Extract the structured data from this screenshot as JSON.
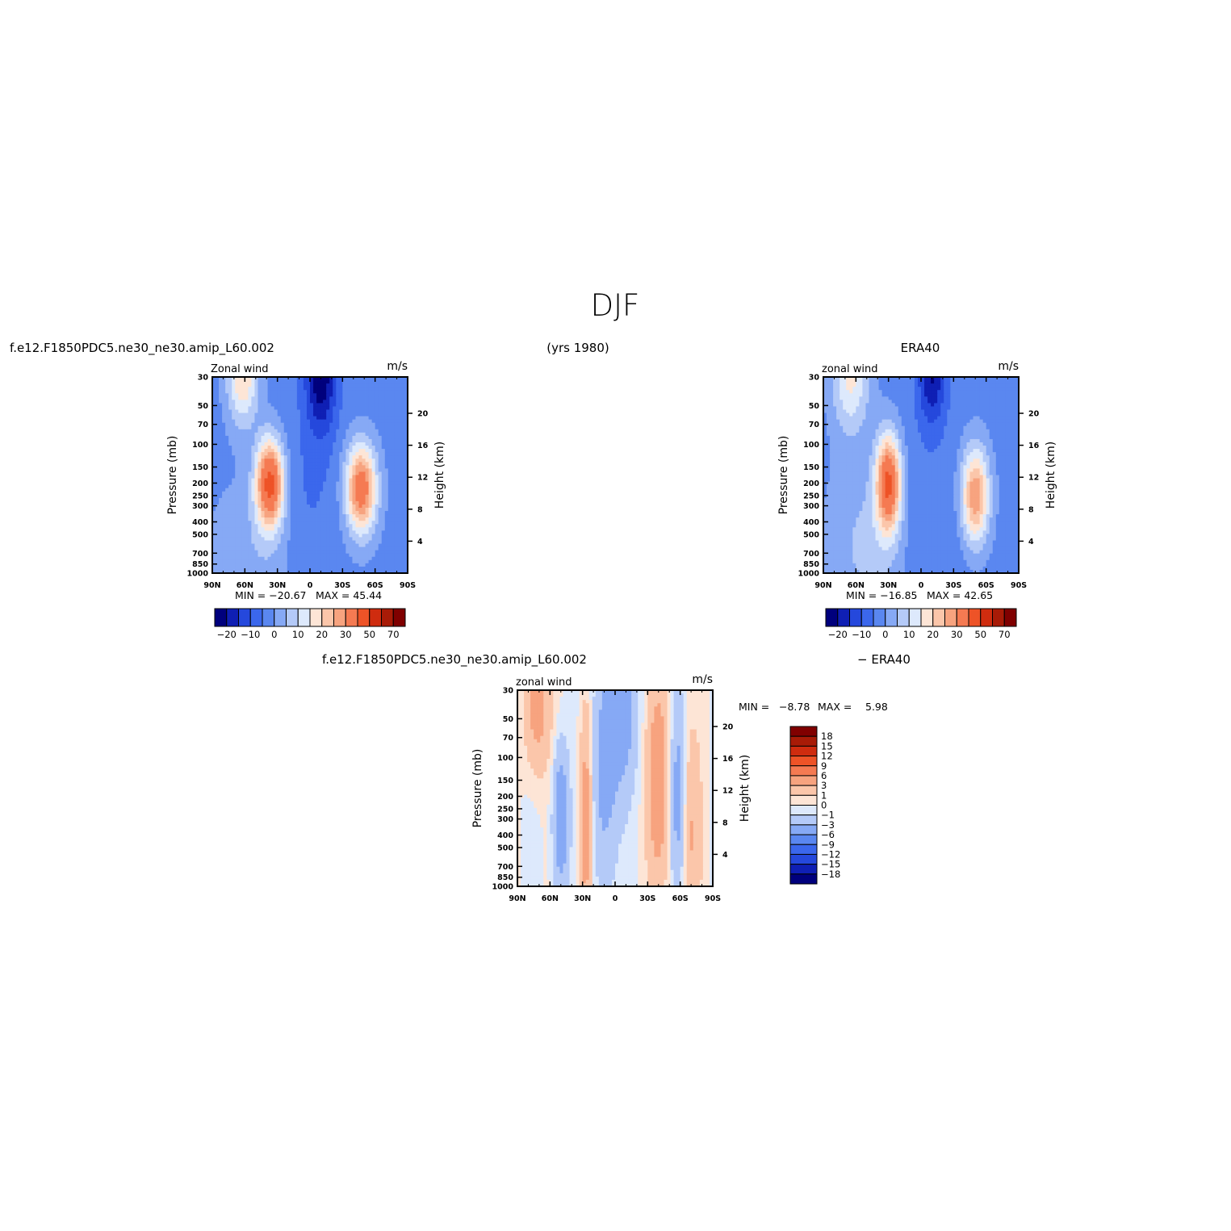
{
  "page_title": "DJF",
  "header": {
    "model_case": "f.e12.F1850PDC5.ne30_ne30.amip_L60.002",
    "years": "(yrs 1980)",
    "reference": "ERA40",
    "diff_model_case": "f.e12.F1850PDC5.ne30_ne30.amip_L60.002",
    "diff_reference": "− ERA40"
  },
  "chart_data": [
    {
      "type": "heatmap",
      "panel": "model",
      "title": "",
      "left_label": "Zonal wind",
      "units": "m/s",
      "xlabel": "",
      "ylabel": "Pressure (mb)",
      "ylabel_right": "Height (km)",
      "x_ticks": [
        "90N",
        "60N",
        "30N",
        "0",
        "30S",
        "60S",
        "90S"
      ],
      "y_ticks": [
        30,
        50,
        70,
        100,
        150,
        200,
        250,
        300,
        400,
        500,
        700,
        850,
        1000
      ],
      "height_ticks": [
        4,
        8,
        12,
        16,
        20
      ],
      "ylim": [
        1000,
        30
      ],
      "y_scale": "log",
      "min_label": "MIN = −20.67",
      "max_label": "MAX =   45.44",
      "min": -20.67,
      "max": 45.44,
      "jets": [
        {
          "lat": 37,
          "p": 200,
          "peak": 45
        },
        {
          "lat": -47,
          "p": 220,
          "peak": 38
        },
        {
          "lat": 60,
          "p": 30,
          "peak": 22
        }
      ],
      "colorbar": {
        "orientation": "horizontal",
        "labels": [
          "−20",
          "−10",
          "0",
          "10",
          "20",
          "30",
          "50",
          "70"
        ],
        "levels": [
          -20,
          -15,
          -10,
          -5,
          0,
          5,
          10,
          15,
          20,
          25,
          30,
          40,
          50,
          60,
          70
        ]
      }
    },
    {
      "type": "heatmap",
      "panel": "reference",
      "title": "",
      "left_label": "zonal wind",
      "units": "m/s",
      "xlabel": "",
      "ylabel": "Pressure (mb)",
      "ylabel_right": "Height (km)",
      "x_ticks": [
        "90N",
        "60N",
        "30N",
        "0",
        "30S",
        "60S",
        "90S"
      ],
      "y_ticks": [
        30,
        50,
        70,
        100,
        150,
        200,
        250,
        300,
        400,
        500,
        700,
        850,
        1000
      ],
      "height_ticks": [
        4,
        8,
        12,
        16,
        20
      ],
      "ylim": [
        1000,
        30
      ],
      "y_scale": "log",
      "min_label": "MIN = −16.85",
      "max_label": "MAX =   42.65",
      "min": -16.85,
      "max": 42.65,
      "jets": [
        {
          "lat": 30,
          "p": 200,
          "peak": 42
        },
        {
          "lat": -50,
          "p": 250,
          "peak": 32
        },
        {
          "lat": 65,
          "p": 30,
          "peak": 18
        }
      ],
      "colorbar": {
        "orientation": "horizontal",
        "labels": [
          "−20",
          "−10",
          "0",
          "10",
          "20",
          "30",
          "50",
          "70"
        ],
        "levels": [
          -20,
          -15,
          -10,
          -5,
          0,
          5,
          10,
          15,
          20,
          25,
          30,
          40,
          50,
          60,
          70
        ]
      }
    },
    {
      "type": "heatmap",
      "panel": "difference",
      "title": "",
      "left_label": "zonal wind",
      "units": "m/s",
      "xlabel": "",
      "ylabel": "Pressure (mb)",
      "ylabel_right": "Height (km)",
      "x_ticks": [
        "90N",
        "60N",
        "30N",
        "0",
        "30S",
        "60S",
        "90S"
      ],
      "y_ticks": [
        30,
        50,
        70,
        100,
        150,
        200,
        250,
        300,
        400,
        500,
        700,
        850,
        1000
      ],
      "height_ticks": [
        4,
        8,
        12,
        16,
        20
      ],
      "ylim": [
        1000,
        30
      ],
      "y_scale": "log",
      "min_label": "MIN =",
      "min_value": "−8.78",
      "max_label": "MAX =",
      "max_value": "5.98",
      "min": -8.78,
      "max": 5.98,
      "colorbar": {
        "orientation": "vertical",
        "labels": [
          "18",
          "15",
          "12",
          "9",
          "6",
          "3",
          "1",
          "0",
          "−1",
          "−3",
          "−6",
          "−9",
          "−12",
          "−15",
          "−18"
        ],
        "levels": [
          -18,
          -15,
          -12,
          -9,
          -6,
          -3,
          -1,
          0,
          1,
          3,
          6,
          9,
          12,
          15,
          18
        ]
      }
    }
  ],
  "colors": {
    "palette": [
      "#00007d",
      "#0f1fb4",
      "#2548dc",
      "#3b67ec",
      "#5a87f0",
      "#86a9f5",
      "#b4caf8",
      "#dde9fc",
      "#fde5d6",
      "#fbc6aa",
      "#f7a37f",
      "#f57a52",
      "#ee5327",
      "#cf2c0f",
      "#a81b07",
      "#800000"
    ]
  }
}
